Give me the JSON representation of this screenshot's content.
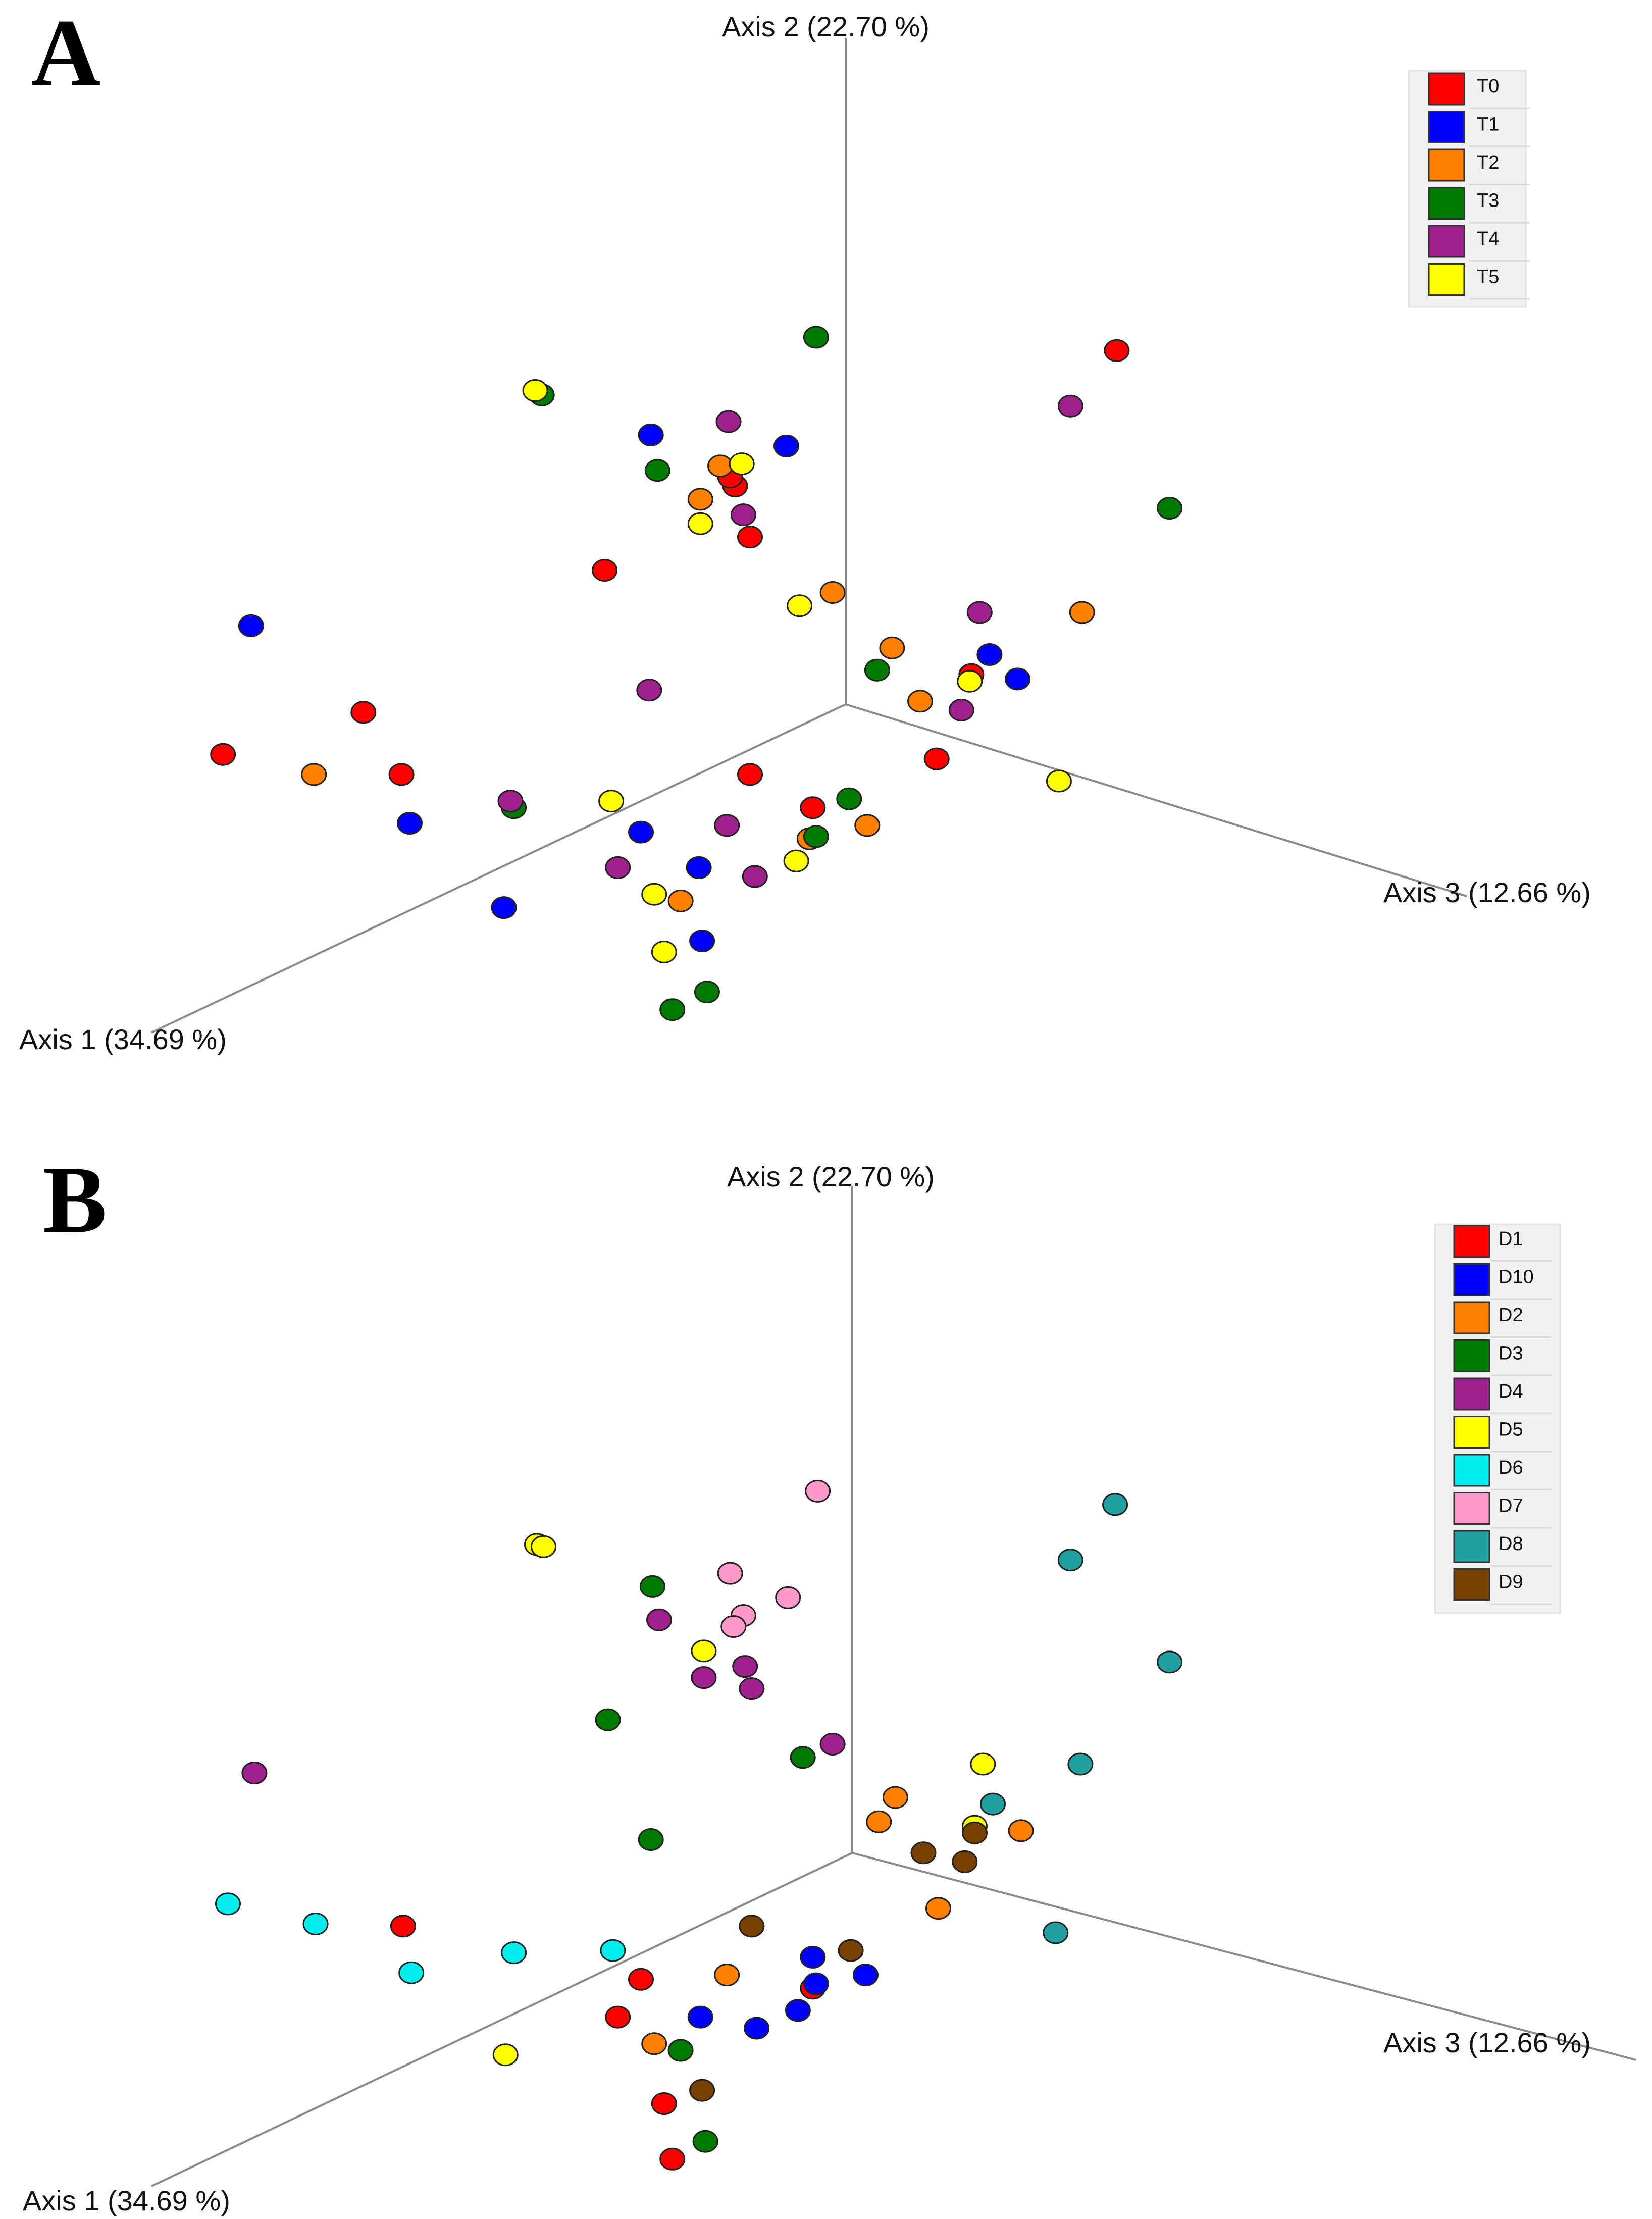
{
  "chart_data": [
    {
      "type": "scatter",
      "subtype": "3d-pcoa",
      "panel": "A",
      "axes": {
        "x": "Axis 1 (34.69 %)",
        "y": "Axis 2 (22.70 %)",
        "z": "Axis 3 (12.66 %)"
      },
      "legend": [
        {
          "label": "T0",
          "color": "#ff0000"
        },
        {
          "label": "T1",
          "color": "#0000ff"
        },
        {
          "label": "T2",
          "color": "#ff7f00"
        },
        {
          "label": "T3",
          "color": "#007a00"
        },
        {
          "label": "T4",
          "color": "#a02090"
        },
        {
          "label": "T5",
          "color": "#ffff00"
        }
      ],
      "points": [
        {
          "g": 0,
          "x": 0.22,
          "y": 0.321
        },
        {
          "g": 0,
          "x": 0.445,
          "y": 0.219
        },
        {
          "g": 0,
          "x": 0.366,
          "y": 0.257
        },
        {
          "g": 0,
          "x": 0.676,
          "y": 0.158
        },
        {
          "g": 0,
          "x": 0.442,
          "y": 0.215
        },
        {
          "g": 0,
          "x": 0.454,
          "y": 0.242
        },
        {
          "g": 0,
          "x": 0.135,
          "y": 0.34
        },
        {
          "g": 0,
          "x": 0.243,
          "y": 0.349
        },
        {
          "g": 0,
          "x": 0.454,
          "y": 0.349
        },
        {
          "g": 0,
          "x": 0.567,
          "y": 0.342
        },
        {
          "g": 0,
          "x": 0.588,
          "y": 0.304
        },
        {
          "g": 0,
          "x": 0.492,
          "y": 0.364
        },
        {
          "g": 1,
          "x": 0.394,
          "y": 0.196
        },
        {
          "g": 1,
          "x": 0.476,
          "y": 0.201
        },
        {
          "g": 1,
          "x": 0.152,
          "y": 0.282
        },
        {
          "g": 1,
          "x": 0.599,
          "y": 0.295
        },
        {
          "g": 1,
          "x": 0.616,
          "y": 0.306
        },
        {
          "g": 1,
          "x": 0.248,
          "y": 0.371
        },
        {
          "g": 1,
          "x": 0.388,
          "y": 0.375
        },
        {
          "g": 1,
          "x": 0.423,
          "y": 0.391
        },
        {
          "g": 1,
          "x": 0.305,
          "y": 0.409
        },
        {
          "g": 1,
          "x": 0.425,
          "y": 0.424
        },
        {
          "g": 2,
          "x": 0.436,
          "y": 0.21
        },
        {
          "g": 2,
          "x": 0.424,
          "y": 0.225
        },
        {
          "g": 2,
          "x": 0.504,
          "y": 0.267
        },
        {
          "g": 2,
          "x": 0.655,
          "y": 0.276
        },
        {
          "g": 2,
          "x": 0.54,
          "y": 0.292
        },
        {
          "g": 2,
          "x": 0.557,
          "y": 0.316
        },
        {
          "g": 2,
          "x": 0.19,
          "y": 0.349
        },
        {
          "g": 2,
          "x": 0.525,
          "y": 0.372
        },
        {
          "g": 2,
          "x": 0.49,
          "y": 0.378
        },
        {
          "g": 2,
          "x": 0.412,
          "y": 0.406
        },
        {
          "g": 3,
          "x": 0.494,
          "y": 0.152
        },
        {
          "g": 3,
          "x": 0.328,
          "y": 0.178
        },
        {
          "g": 3,
          "x": 0.398,
          "y": 0.212
        },
        {
          "g": 3,
          "x": 0.708,
          "y": 0.229
        },
        {
          "g": 3,
          "x": 0.531,
          "y": 0.302
        },
        {
          "g": 3,
          "x": 0.514,
          "y": 0.36
        },
        {
          "g": 3,
          "x": 0.311,
          "y": 0.364
        },
        {
          "g": 3,
          "x": 0.494,
          "y": 0.377
        },
        {
          "g": 3,
          "x": 0.428,
          "y": 0.447
        },
        {
          "g": 3,
          "x": 0.407,
          "y": 0.455
        },
        {
          "g": 4,
          "x": 0.441,
          "y": 0.19
        },
        {
          "g": 4,
          "x": 0.648,
          "y": 0.183
        },
        {
          "g": 4,
          "x": 0.45,
          "y": 0.232
        },
        {
          "g": 4,
          "x": 0.593,
          "y": 0.276
        },
        {
          "g": 4,
          "x": 0.582,
          "y": 0.32
        },
        {
          "g": 4,
          "x": 0.393,
          "y": 0.311
        },
        {
          "g": 4,
          "x": 0.309,
          "y": 0.361
        },
        {
          "g": 4,
          "x": 0.44,
          "y": 0.372
        },
        {
          "g": 4,
          "x": 0.374,
          "y": 0.391
        },
        {
          "g": 4,
          "x": 0.457,
          "y": 0.395
        },
        {
          "g": 5,
          "x": 0.324,
          "y": 0.176
        },
        {
          "g": 5,
          "x": 0.449,
          "y": 0.209
        },
        {
          "g": 5,
          "x": 0.424,
          "y": 0.236
        },
        {
          "g": 5,
          "x": 0.484,
          "y": 0.273
        },
        {
          "g": 5,
          "x": 0.587,
          "y": 0.307
        },
        {
          "g": 5,
          "x": 0.641,
          "y": 0.352
        },
        {
          "g": 5,
          "x": 0.37,
          "y": 0.361
        },
        {
          "g": 5,
          "x": 0.482,
          "y": 0.388
        },
        {
          "g": 5,
          "x": 0.396,
          "y": 0.403
        },
        {
          "g": 5,
          "x": 0.402,
          "y": 0.429
        }
      ]
    },
    {
      "type": "scatter",
      "subtype": "3d-pcoa",
      "panel": "B",
      "axes": {
        "x": "Axis 1 (34.69 %)",
        "y": "Axis 2 (22.70 %)",
        "z": "Axis 3 (12.66 %)"
      },
      "legend": [
        {
          "label": "D1",
          "color": "#ff0000"
        },
        {
          "label": "D10",
          "color": "#0000ff"
        },
        {
          "label": "D2",
          "color": "#ff7f00"
        },
        {
          "label": "D3",
          "color": "#007a00"
        },
        {
          "label": "D4",
          "color": "#a02090"
        },
        {
          "label": "D5",
          "color": "#ffff00"
        },
        {
          "label": "D6",
          "color": "#00eeee"
        },
        {
          "label": "D7",
          "color": "#ff99cc"
        },
        {
          "label": "D8",
          "color": "#20a0a0"
        },
        {
          "label": "D9",
          "color": "#7a4000"
        }
      ],
      "points": [
        {
          "g": 0,
          "x": 0.244,
          "y": 0.868
        },
        {
          "g": 0,
          "x": 0.388,
          "y": 0.892
        },
        {
          "g": 0,
          "x": 0.374,
          "y": 0.909
        },
        {
          "g": 0,
          "x": 0.492,
          "y": 0.896
        },
        {
          "g": 0,
          "x": 0.402,
          "y": 0.948
        },
        {
          "g": 0,
          "x": 0.407,
          "y": 0.973
        },
        {
          "g": 1,
          "x": 0.492,
          "y": 0.882
        },
        {
          "g": 1,
          "x": 0.524,
          "y": 0.89
        },
        {
          "g": 1,
          "x": 0.494,
          "y": 0.894
        },
        {
          "g": 1,
          "x": 0.424,
          "y": 0.909
        },
        {
          "g": 1,
          "x": 0.483,
          "y": 0.906
        },
        {
          "g": 1,
          "x": 0.458,
          "y": 0.914
        },
        {
          "g": 2,
          "x": 0.542,
          "y": 0.81
        },
        {
          "g": 2,
          "x": 0.532,
          "y": 0.821
        },
        {
          "g": 2,
          "x": 0.618,
          "y": 0.825
        },
        {
          "g": 2,
          "x": 0.568,
          "y": 0.86
        },
        {
          "g": 2,
          "x": 0.44,
          "y": 0.89
        },
        {
          "g": 2,
          "x": 0.396,
          "y": 0.921
        },
        {
          "g": 3,
          "x": 0.395,
          "y": 0.715
        },
        {
          "g": 3,
          "x": 0.368,
          "y": 0.775
        },
        {
          "g": 3,
          "x": 0.486,
          "y": 0.792
        },
        {
          "g": 3,
          "x": 0.394,
          "y": 0.829
        },
        {
          "g": 3,
          "x": 0.412,
          "y": 0.924
        },
        {
          "g": 3,
          "x": 0.427,
          "y": 0.965
        },
        {
          "g": 4,
          "x": 0.399,
          "y": 0.73
        },
        {
          "g": 4,
          "x": 0.451,
          "y": 0.751
        },
        {
          "g": 4,
          "x": 0.426,
          "y": 0.756
        },
        {
          "g": 4,
          "x": 0.455,
          "y": 0.761
        },
        {
          "g": 4,
          "x": 0.504,
          "y": 0.786
        },
        {
          "g": 4,
          "x": 0.154,
          "y": 0.799
        },
        {
          "g": 5,
          "x": 0.325,
          "y": 0.696
        },
        {
          "g": 5,
          "x": 0.329,
          "y": 0.697
        },
        {
          "g": 5,
          "x": 0.426,
          "y": 0.744
        },
        {
          "g": 5,
          "x": 0.595,
          "y": 0.795
        },
        {
          "g": 5,
          "x": 0.59,
          "y": 0.823
        },
        {
          "g": 5,
          "x": 0.306,
          "y": 0.926
        },
        {
          "g": 6,
          "x": 0.138,
          "y": 0.858
        },
        {
          "g": 6,
          "x": 0.191,
          "y": 0.867
        },
        {
          "g": 6,
          "x": 0.311,
          "y": 0.88
        },
        {
          "g": 6,
          "x": 0.371,
          "y": 0.879
        },
        {
          "g": 6,
          "x": 0.249,
          "y": 0.889
        },
        {
          "g": 7,
          "x": 0.495,
          "y": 0.672
        },
        {
          "g": 7,
          "x": 0.442,
          "y": 0.709
        },
        {
          "g": 7,
          "x": 0.477,
          "y": 0.72
        },
        {
          "g": 7,
          "x": 0.45,
          "y": 0.728
        },
        {
          "g": 7,
          "x": 0.444,
          "y": 0.733
        },
        {
          "g": 8,
          "x": 0.675,
          "y": 0.678
        },
        {
          "g": 8,
          "x": 0.648,
          "y": 0.703
        },
        {
          "g": 8,
          "x": 0.708,
          "y": 0.749
        },
        {
          "g": 8,
          "x": 0.654,
          "y": 0.795
        },
        {
          "g": 8,
          "x": 0.601,
          "y": 0.813
        },
        {
          "g": 8,
          "x": 0.639,
          "y": 0.871
        },
        {
          "g": 9,
          "x": 0.59,
          "y": 0.826
        },
        {
          "g": 9,
          "x": 0.559,
          "y": 0.835
        },
        {
          "g": 9,
          "x": 0.584,
          "y": 0.839
        },
        {
          "g": 9,
          "x": 0.455,
          "y": 0.868
        },
        {
          "g": 9,
          "x": 0.515,
          "y": 0.879
        },
        {
          "g": 9,
          "x": 0.425,
          "y": 0.942
        }
      ]
    }
  ]
}
